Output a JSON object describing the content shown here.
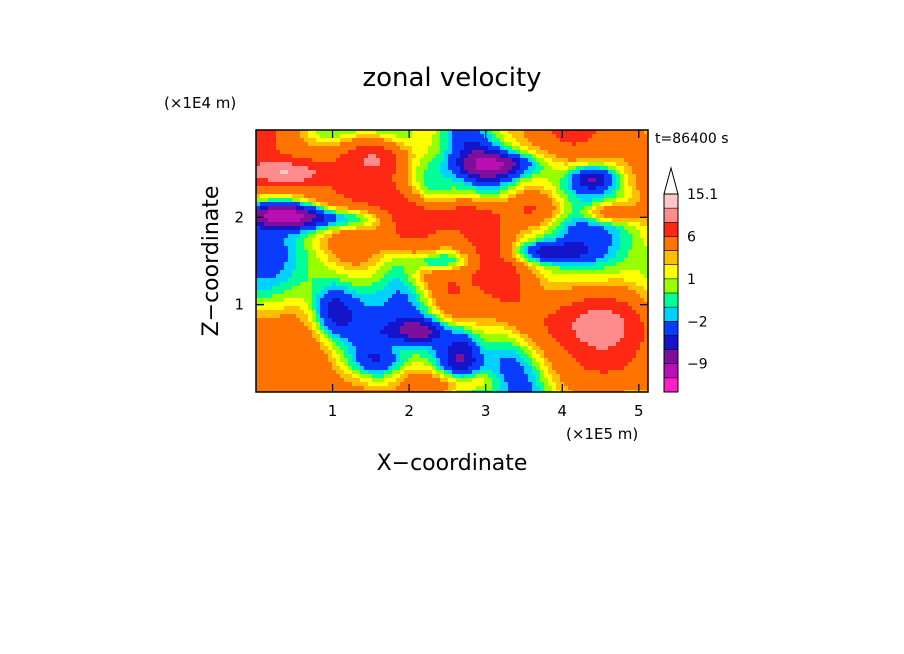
{
  "chart_data": {
    "type": "heatmap",
    "title": "zonal velocity",
    "time_label": "t=86400 s",
    "xlabel": "X−coordinate",
    "ylabel": "Z−coordinate",
    "x_unit": "(×1E5 m)",
    "y_unit": "(×1E4 m)",
    "xlim": [
      0,
      5.12
    ],
    "ylim": [
      0,
      3.0
    ],
    "x_ticks": [
      1,
      2,
      3,
      4,
      5
    ],
    "y_ticks": [
      1,
      2
    ],
    "colorbar": {
      "levels": [
        -15.1,
        -12,
        -9,
        -6,
        -4,
        -2,
        -1,
        0,
        1,
        2,
        3,
        6,
        9,
        12,
        15.1
      ],
      "colors": [
        "#ff1ec8",
        "#b90fb4",
        "#7d0f9b",
        "#1414c8",
        "#0a3cff",
        "#00d2ff",
        "#00ff96",
        "#96ff00",
        "#ffff00",
        "#ffbe00",
        "#ff7300",
        "#ff2814",
        "#ff8c8c",
        "#ffc8c8"
      ],
      "labels": [
        {
          "value": -9,
          "text": "−9"
        },
        {
          "value": -2,
          "text": "−2"
        },
        {
          "value": 1,
          "text": "1"
        },
        {
          "value": 6,
          "text": "6"
        },
        {
          "value": 15.1,
          "text": "15.1"
        }
      ]
    }
  }
}
